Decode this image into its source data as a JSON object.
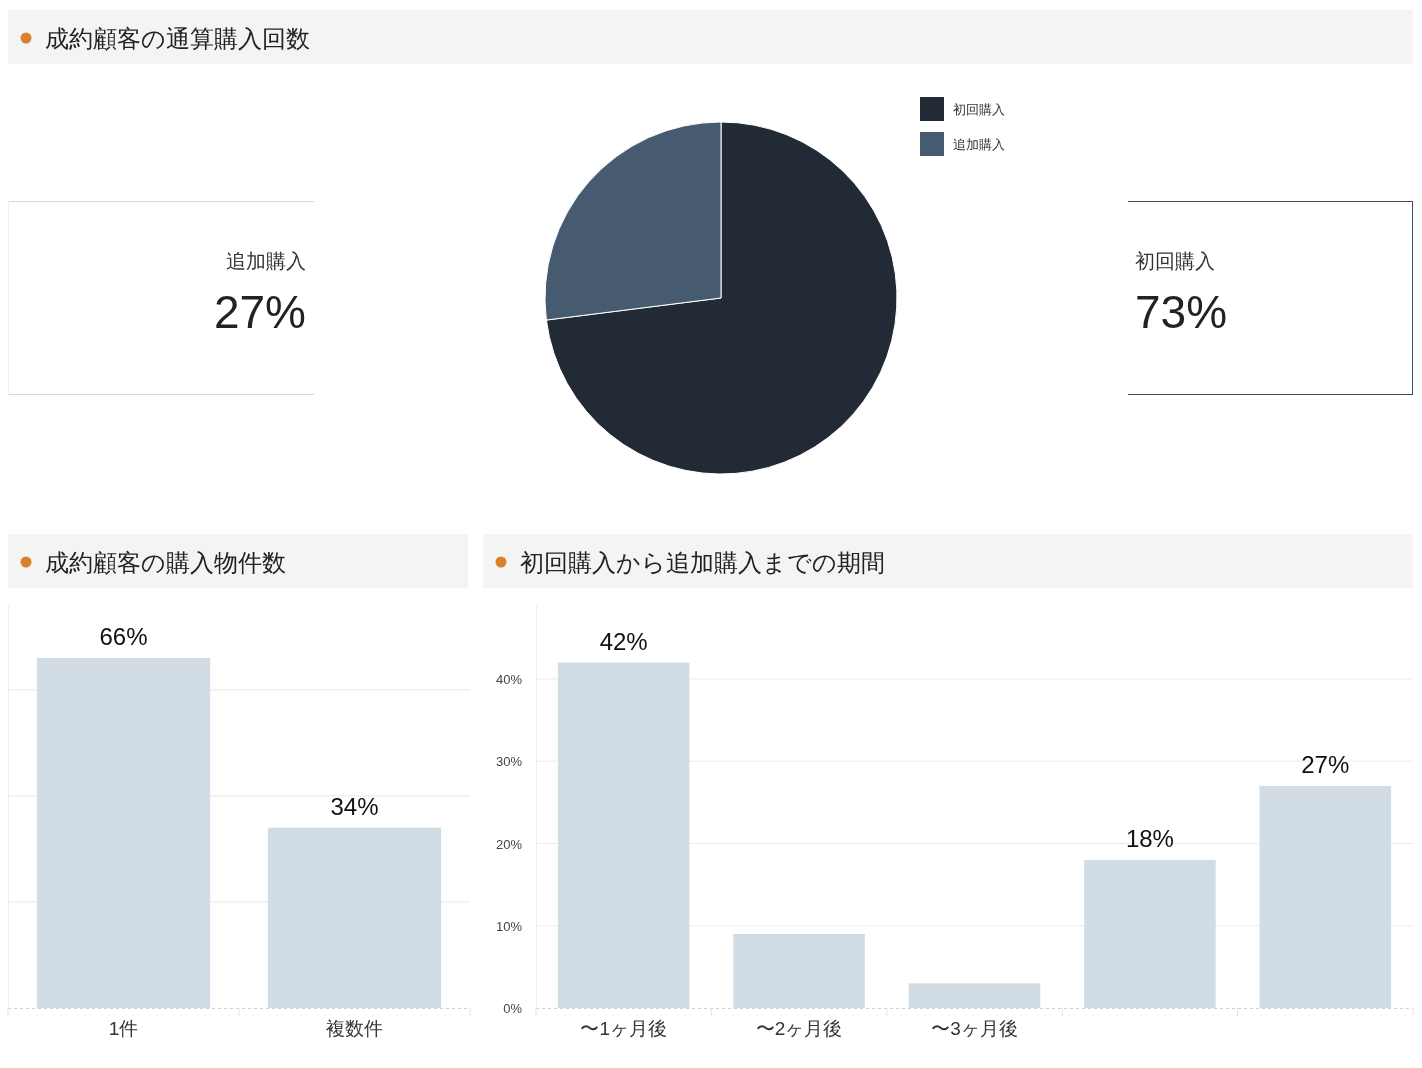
{
  "chart_data": [
    {
      "type": "pie",
      "title": "成約顧客の通算購入回数",
      "categories": [
        "初回購入",
        "追加購入"
      ],
      "values": [
        73,
        27
      ],
      "colors": [
        "#222a35",
        "#465b70"
      ],
      "legend": "top right"
    },
    {
      "type": "other",
      "title": "追加購入",
      "annotations": [
        "27%"
      ]
    },
    {
      "type": "other",
      "title": "初回購入",
      "annotations": [
        "73%"
      ]
    },
    {
      "type": "bar",
      "title": "成約顧客の購入物件数",
      "categories": [
        "1件",
        "複数件"
      ],
      "values": [
        66,
        34
      ],
      "color": "#d1dce5",
      "ylim": [
        0,
        76
      ],
      "yticks": [
        {
          "value": 20,
          "label": null
        },
        {
          "value": 40,
          "label": null
        },
        {
          "value": 60,
          "label": null
        }
      ],
      "grid": "y",
      "tick_labels": "x",
      "value_labels": [
        "66%",
        "34%"
      ]
    },
    {
      "type": "bar",
      "title": "初回購入から追加購入までの期間",
      "categories": [
        "〜1ヶ月後",
        "〜2ヶ月後",
        "〜3ヶ月後",
        null,
        null
      ],
      "values": [
        42,
        9,
        3,
        18,
        27
      ],
      "color": "#d1dce5",
      "ylim": [
        0,
        49
      ],
      "yticks": [
        {
          "value": 0,
          "label": "0%"
        },
        {
          "value": 10,
          "label": "10%"
        },
        {
          "value": 20,
          "label": "20%"
        },
        {
          "value": 30,
          "label": "30%"
        },
        {
          "value": 40,
          "label": "40%"
        }
      ],
      "grid": "y",
      "value_labels": [
        "42%",
        null,
        null,
        "18%",
        "27%"
      ]
    }
  ]
}
